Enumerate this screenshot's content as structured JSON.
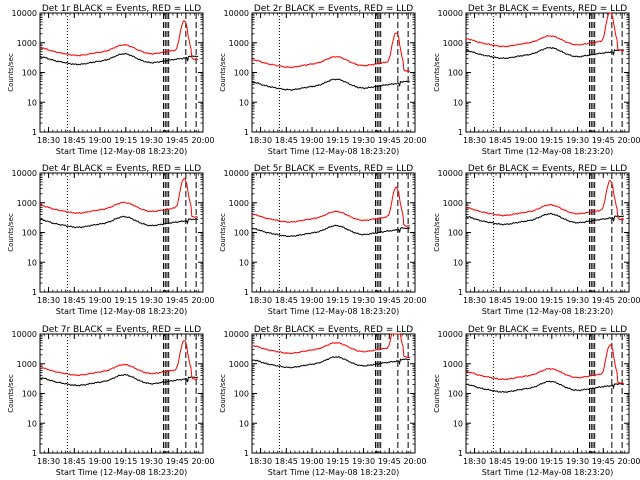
{
  "chart_data": {
    "type": "line",
    "layout": "grid-3x3",
    "yscale": "log",
    "ylim": [
      1,
      10000
    ],
    "ylabel": "Counts/sec",
    "y_ticks": [
      "1",
      "10",
      "100",
      "1000",
      "10000"
    ],
    "x_ticks": [
      "18:30",
      "18:45",
      "19:00",
      "19:15",
      "19:30",
      "19:45",
      "20:00"
    ],
    "xlim_minutes": [
      0,
      95
    ],
    "xtick_minutes": [
      5,
      20,
      35,
      50,
      65,
      80,
      95
    ],
    "xlabel": "Start Time (12-May-08 18:23:20)",
    "series_colors": {
      "events": "#000000",
      "lld": "#ff0000"
    },
    "panels": [
      {
        "title": "Det 1r BLACK = Events, RED = LLD",
        "events_base": 250,
        "lld_base": 500
      },
      {
        "title": "Det 2r BLACK = Events, RED = LLD",
        "events_base": 35,
        "lld_base": 200
      },
      {
        "title": "Det 3r BLACK = Events, RED = LLD",
        "events_base": 400,
        "lld_base": 1000
      },
      {
        "title": "Det 4r BLACK = Events, RED = LLD",
        "events_base": 200,
        "lld_base": 600
      },
      {
        "title": "Det 5r BLACK = Events, RED = LLD",
        "events_base": 100,
        "lld_base": 300
      },
      {
        "title": "Det 6r BLACK = Events, RED = LLD",
        "events_base": 250,
        "lld_base": 500
      },
      {
        "title": "Det 7r BLACK = Events, RED = LLD",
        "events_base": 250,
        "lld_base": 550
      },
      {
        "title": "Det 8r BLACK = Events, RED = LLD",
        "events_base": 1000,
        "lld_base": 3000
      },
      {
        "title": "Det 9r BLACK = Events, RED = LLD",
        "events_base": 150,
        "lld_base": 400
      }
    ],
    "reference_lines_minutes": {
      "dotted": [
        16
      ],
      "dashed": [
        72,
        73,
        74,
        75,
        85,
        91
      ]
    }
  }
}
